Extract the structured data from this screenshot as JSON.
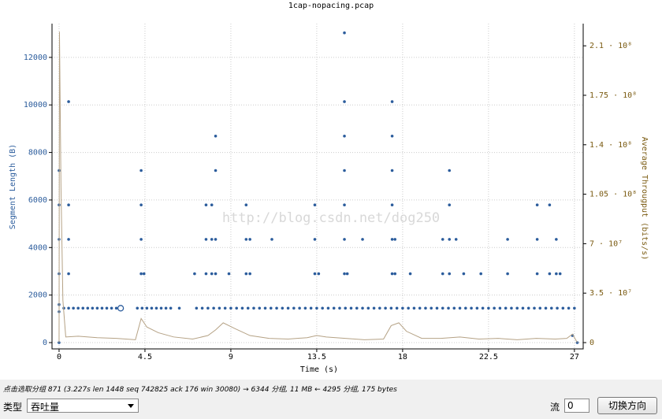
{
  "chart_data": {
    "type": "scatter",
    "title": "1cap-nopacing.pcap",
    "xlabel": "Time (s)",
    "ylabel": "Segment Length (B)",
    "y2label": "Average Througput (bits/s)",
    "watermark": "http://blog.csdn.net/dog250",
    "xlim": [
      -0.37,
      27.46
    ],
    "xticks": [
      0,
      4.5,
      9,
      13.5,
      18,
      22.5,
      27
    ],
    "ylim": [
      -265,
      13420
    ],
    "yticks": [
      0,
      2000,
      4000,
      6000,
      8000,
      10000,
      12000
    ],
    "y2lim": [
      -4460000,
      225700000
    ],
    "y2ticks": [
      {
        "value": 0,
        "label": "0"
      },
      {
        "value": 35000000,
        "label": "3.5 · 10⁷"
      },
      {
        "value": 70000000,
        "label": "7 · 10⁷"
      },
      {
        "value": 105000000,
        "label": "1.05 · 10⁸"
      },
      {
        "value": 140000000,
        "label": "1.4 · 10⁸"
      },
      {
        "value": 175000000,
        "label": "1.75 · 10⁸"
      },
      {
        "value": 210000000,
        "label": "2.1 · 10⁸"
      }
    ],
    "grid": true,
    "series": [
      {
        "type": "scatter",
        "color": "#2b5c9c",
        "x": [
          0.25,
          0.5,
          0.75,
          1,
          1.25,
          1.5,
          1.75,
          2,
          2.25,
          2.5,
          2.75,
          3,
          4.1,
          4.35,
          4.6,
          4.85,
          5.1,
          5.35,
          5.6,
          5.85,
          6.3,
          7.2,
          7.5,
          7.8,
          8.1,
          8.4,
          8.7,
          9.0,
          9.3,
          9.6,
          9.9,
          10.2,
          10.5,
          10.8,
          11.1,
          11.4,
          11.7,
          12.0,
          12.3,
          12.6,
          12.9,
          13.2,
          13.5,
          13.8,
          14.1,
          14.4,
          14.7,
          15.0,
          15.3,
          15.6,
          15.9,
          16.2,
          16.5,
          16.8,
          17.1,
          17.4,
          17.7,
          18.0,
          18.3,
          18.6,
          18.9,
          19.2,
          19.5,
          19.8,
          20.1,
          20.4,
          20.7,
          21.0,
          21.3,
          21.6,
          21.9,
          22.2,
          22.5,
          22.8,
          23.1,
          23.4,
          23.7,
          24.0,
          24.3,
          24.6,
          24.9,
          25.2,
          25.5,
          25.8,
          26.1,
          26.4,
          26.7,
          27
        ],
        "values": [
          1448,
          1448,
          1448,
          1448,
          1448,
          1448,
          1448,
          1448,
          1448,
          1448,
          1448,
          1448,
          1448,
          1448,
          1448,
          1448,
          1448,
          1448,
          1448,
          1448,
          1448,
          1448,
          1448,
          1448,
          1448,
          1448,
          1448,
          1448,
          1448,
          1448,
          1448,
          1448,
          1448,
          1448,
          1448,
          1448,
          1448,
          1448,
          1448,
          1448,
          1448,
          1448,
          1448,
          1448,
          1448,
          1448,
          1448,
          1448,
          1448,
          1448,
          1448,
          1448,
          1448,
          1448,
          1448,
          1448,
          1448,
          1448,
          1448,
          1448,
          1448,
          1448,
          1448,
          1448,
          1448,
          1448,
          1448,
          1448,
          1448,
          1448,
          1448,
          1448,
          1448,
          1448,
          1448,
          1448,
          1448,
          1448,
          1448,
          1448,
          1448,
          1448,
          1448,
          1448,
          1448,
          1448,
          1448,
          1448
        ]
      },
      {
        "type": "scatter",
        "color": "#2b5c9c",
        "x": [
          0,
          0,
          0,
          0,
          0,
          0,
          0,
          0.5,
          0.5,
          0.5,
          0.5,
          4.3,
          4.3,
          4.3,
          4.3,
          4.45,
          7.1,
          7.7,
          7.7,
          7.7,
          8,
          8,
          8,
          8.2,
          8.2,
          8.2,
          8.2,
          8.9,
          9.8,
          9.8,
          9.8,
          10,
          10,
          11.15,
          13.4,
          13.4,
          13.4,
          13.6,
          14.95,
          14.95,
          14.95,
          14.95,
          14.95,
          14.95,
          14.95,
          15.1,
          15.9,
          17.45,
          17.45,
          17.45,
          17.45,
          17.45,
          17.45,
          17.6,
          17.6,
          18.4,
          20.1,
          20.1,
          20.45,
          20.45,
          20.45,
          20.45,
          20.8,
          21.2,
          22.1,
          23.5,
          23.5,
          25.05,
          25.05,
          25.05,
          25.7,
          25.7,
          26.05,
          26.05,
          26.25,
          26.9,
          27.15
        ],
        "values": [
          0,
          1300,
          1600,
          2896,
          4344,
          5792,
          7240,
          2896,
          4344,
          5792,
          10136,
          2896,
          4344,
          5792,
          7240,
          2896,
          2896,
          2896,
          4344,
          5792,
          2896,
          4344,
          5792,
          2896,
          4344,
          7240,
          8688,
          2896,
          2896,
          4344,
          5792,
          2896,
          4344,
          4344,
          2896,
          4344,
          5792,
          2896,
          2896,
          4344,
          5792,
          7240,
          8688,
          10136,
          13032,
          2896,
          4344,
          2896,
          4344,
          5792,
          7240,
          8688,
          10136,
          2896,
          4344,
          2896,
          2896,
          4344,
          2896,
          4344,
          5792,
          7240,
          4344,
          2896,
          2896,
          2896,
          4344,
          2896,
          4344,
          5792,
          2896,
          5792,
          2896,
          4344,
          2896,
          300,
          0
        ]
      },
      {
        "type": "line",
        "axis": "y2",
        "color": "#b5a285",
        "x": [
          0,
          0.02,
          0.1,
          0.2,
          0.35,
          1,
          2,
          3,
          4,
          4.3,
          4.6,
          5.2,
          6,
          7,
          7.8,
          8.2,
          8.6,
          9.2,
          10,
          11,
          12,
          13,
          13.5,
          14,
          15,
          16,
          17,
          17.4,
          17.8,
          18.2,
          19,
          20,
          21,
          22,
          23,
          24,
          25,
          26,
          26.6,
          26.9,
          27.15
        ],
        "values": [
          0,
          220000000,
          110000000,
          30000000,
          4000000,
          4500000,
          3500000,
          3000000,
          2000000,
          17000000,
          11000000,
          7000000,
          4000000,
          2500000,
          5000000,
          9000000,
          14000000,
          10000000,
          5000000,
          3000000,
          2500000,
          3500000,
          5000000,
          4000000,
          3000000,
          2000000,
          2500000,
          12000000,
          14000000,
          8000000,
          3000000,
          3000000,
          4000000,
          2500000,
          3000000,
          2000000,
          3000000,
          2500000,
          3000000,
          6000000,
          0
        ]
      }
    ],
    "selected": {
      "x": 3.227,
      "y": 1448
    }
  },
  "status": "点击选取分组 871 (3.227s len 1448 seq 742825 ack 176 win 30080) → 6344 分组, 11 MB ← 4295 分组, 175 bytes",
  "controls": {
    "type_label": "类型",
    "type_value": "吞吐量",
    "stream_label": "流",
    "stream_value": "0",
    "button": "切换方向"
  }
}
